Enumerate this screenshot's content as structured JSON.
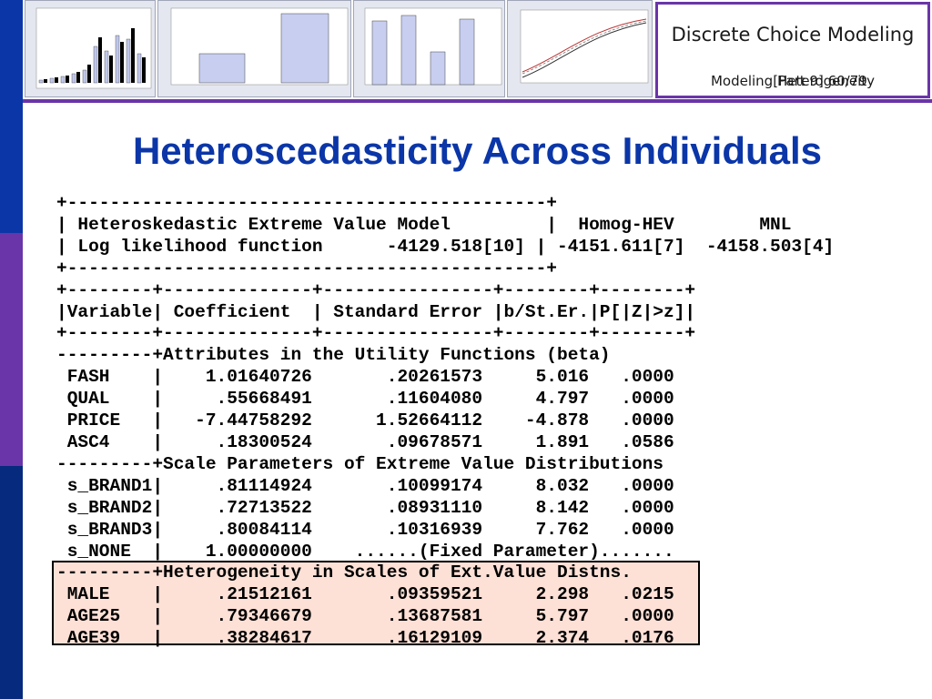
{
  "header": {
    "course": "Discrete Choice Modeling",
    "subtitle": "Modeling Heterogeneity",
    "slide_number": "[Part 9]  60/79"
  },
  "slide_title": "Heteroscedasticity Across Individuals",
  "output_lines": [
    "+---------------------------------------------+",
    "| Heteroskedastic Extreme Value Model         |  Homog-HEV        MNL",
    "| Log likelihood function      -4129.518[10] | -4151.611[7]  -4158.503[4]",
    "+---------------------------------------------+",
    "+--------+--------------+----------------+--------+--------+",
    "|Variable| Coefficient  | Standard Error |b/St.Er.|P[|Z|>z]|",
    "+--------+--------------+----------------+--------+--------+",
    "---------+Attributes in the Utility Functions (beta)",
    " FASH    |    1.01640726       .20261573     5.016   .0000",
    " QUAL    |     .55668491       .11604080     4.797   .0000",
    " PRICE   |   -7.44758292      1.52664112    -4.878   .0000",
    " ASC4    |     .18300524       .09678571     1.891   .0586",
    "---------+Scale Parameters of Extreme Value Distributions",
    " s_BRAND1|     .81114924       .10099174     8.032   .0000",
    " s_BRAND2|     .72713522       .08931110     8.142   .0000",
    " s_BRAND3|     .80084114       .10316939     7.762   .0000",
    " s_NONE  |    1.00000000    ......(Fixed Parameter)......."
  ],
  "highlight_lines": [
    "---------+Heterogeneity in Scales of Ext.Value Distns.",
    " MALE    |     .21512161       .09359521     2.298   .0215",
    " AGE25   |     .79346679       .13687581     5.797   .0000",
    " AGE39   |     .38284617       .16129109     2.374   .0176"
  ],
  "colors": {
    "title": "#0b36a8",
    "accent": "#6a35a8",
    "highlight_fill": "#fde0d6"
  }
}
